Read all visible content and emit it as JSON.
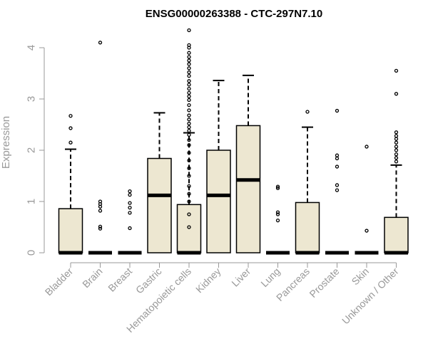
{
  "chart_data": {
    "type": "boxplot",
    "title": "ENSG00000263388 - CTC-297N7.10",
    "xlabel": "",
    "ylabel": "Expression",
    "ylim": [
      0,
      4.35
    ],
    "y_ticks": [
      0,
      1,
      2,
      3,
      4
    ],
    "grid": false,
    "colors": {
      "box_fill": "#ede7d1",
      "stroke": "#000000",
      "axis": "#999999"
    },
    "categories": [
      "Bladder",
      "Brain",
      "Breast",
      "Gastric",
      "Hematopoietic cells",
      "Kidney",
      "Liver",
      "Lung",
      "Pancreas",
      "Prostate",
      "Skin",
      "Unknown / Other"
    ],
    "boxes": [
      {
        "category": "Bladder",
        "q1": 0,
        "median": 0,
        "q3": 0.86,
        "whisker_low": 0,
        "whisker_high": 2.02,
        "outliers": [
          2.15,
          2.43,
          2.67
        ]
      },
      {
        "category": "Brain",
        "q1": 0,
        "median": 0,
        "q3": 0,
        "whisker_low": 0,
        "whisker_high": 0,
        "outliers": [
          0.47,
          0.51,
          0.82,
          0.9,
          0.95,
          1.0,
          4.1
        ]
      },
      {
        "category": "Breast",
        "q1": 0,
        "median": 0,
        "q3": 0,
        "whisker_low": 0,
        "whisker_high": 0,
        "outliers": [
          0.48,
          0.78,
          0.88,
          0.97,
          1.13,
          1.2
        ]
      },
      {
        "category": "Gastric",
        "q1": 0,
        "median": 1.12,
        "q3": 1.84,
        "whisker_low": 0,
        "whisker_high": 2.73,
        "outliers": []
      },
      {
        "category": "Hematopoietic cells",
        "q1": 0,
        "median": 0,
        "q3": 0.94,
        "whisker_low": 0,
        "whisker_high": 2.34,
        "outliers": [
          0.5,
          0.75,
          1.0,
          1.15,
          1.3,
          1.5,
          1.65,
          1.8,
          1.95,
          2.1,
          2.2,
          2.3,
          2.38,
          2.45,
          2.52,
          2.6,
          2.68,
          2.78,
          2.88,
          2.98,
          3.05,
          3.12,
          3.2,
          3.28,
          3.35,
          3.45,
          3.52,
          3.6,
          3.68,
          3.75,
          3.82,
          3.9,
          4.0,
          4.05,
          4.34
        ]
      },
      {
        "category": "Kidney",
        "q1": 0,
        "median": 1.12,
        "q3": 2.0,
        "whisker_low": 0,
        "whisker_high": 3.36,
        "outliers": []
      },
      {
        "category": "Liver",
        "q1": 0,
        "median": 1.42,
        "q3": 2.48,
        "whisker_low": 0,
        "whisker_high": 3.46,
        "outliers": []
      },
      {
        "category": "Lung",
        "q1": 0,
        "median": 0,
        "q3": 0,
        "whisker_low": 0,
        "whisker_high": 0,
        "outliers": [
          0.63,
          0.75,
          0.79,
          1.26,
          1.29
        ]
      },
      {
        "category": "Pancreas",
        "q1": 0,
        "median": 0,
        "q3": 0.98,
        "whisker_low": 0,
        "whisker_high": 2.45,
        "outliers": [
          2.75
        ]
      },
      {
        "category": "Prostate",
        "q1": 0,
        "median": 0,
        "q3": 0,
        "whisker_low": 0,
        "whisker_high": 0,
        "outliers": [
          1.22,
          1.32,
          1.68,
          1.84,
          1.9,
          2.77
        ]
      },
      {
        "category": "Skin",
        "q1": 0,
        "median": 0,
        "q3": 0,
        "whisker_low": 0,
        "whisker_high": 0,
        "outliers": [
          0.43,
          2.07
        ]
      },
      {
        "category": "Unknown / Other",
        "q1": 0,
        "median": 0,
        "q3": 0.69,
        "whisker_low": 0,
        "whisker_high": 1.71,
        "outliers": [
          1.78,
          1.85,
          1.92,
          2.0,
          2.07,
          2.15,
          2.22,
          2.28,
          2.35,
          3.1,
          3.55
        ]
      }
    ]
  }
}
